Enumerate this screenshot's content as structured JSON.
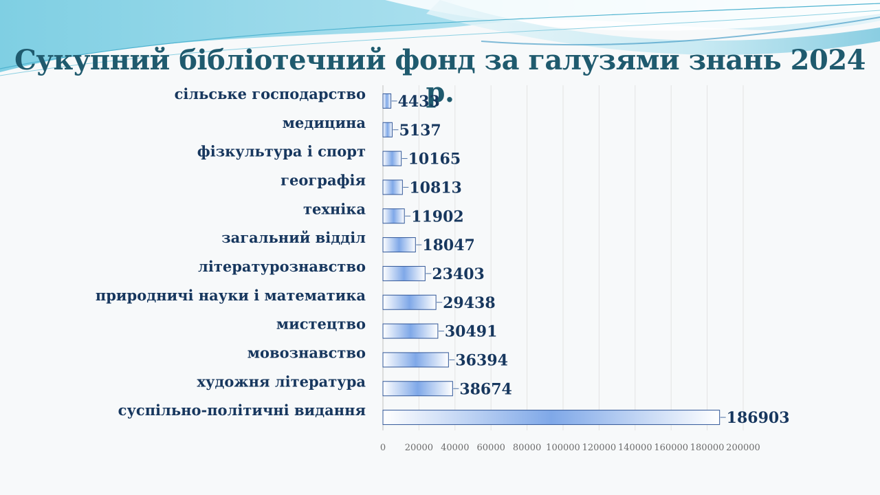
{
  "title": "Сукупний бібліотечний фонд за галузями знань 2024 р.",
  "chart_data": {
    "type": "bar",
    "orientation": "horizontal",
    "title": "Сукупний бібліотечний фонд за галузями знань 2024 р.",
    "categories": [
      "сільське господарство",
      "медицина",
      "фізкультура і спорт",
      "географія",
      "техніка",
      "загальний відділ",
      "літературознавство",
      "природничі науки і математика",
      "мистецтво",
      "мовознавство",
      "художня література",
      "суспільно-політичні видання"
    ],
    "values": [
      4433,
      5137,
      10165,
      10813,
      11902,
      18047,
      23403,
      29438,
      30491,
      36394,
      38674,
      186903
    ],
    "value_labels": [
      "4433",
      "5137",
      "10165",
      "10813",
      "11902",
      "18047",
      "23403",
      "29438",
      "30491",
      "36394",
      "38674",
      "186903"
    ],
    "xlim": [
      0,
      200000
    ],
    "ticks": [
      0,
      20000,
      40000,
      60000,
      80000,
      100000,
      120000,
      140000,
      160000,
      180000,
      200000
    ],
    "tick_labels": [
      "0",
      "20000",
      "40000",
      "60000",
      "80000",
      "100000",
      "120000",
      "140000",
      "160000",
      "180000",
      "200000"
    ],
    "xlabel": "",
    "ylabel": "",
    "grid": true,
    "bar_color": "#5b8fe0"
  }
}
